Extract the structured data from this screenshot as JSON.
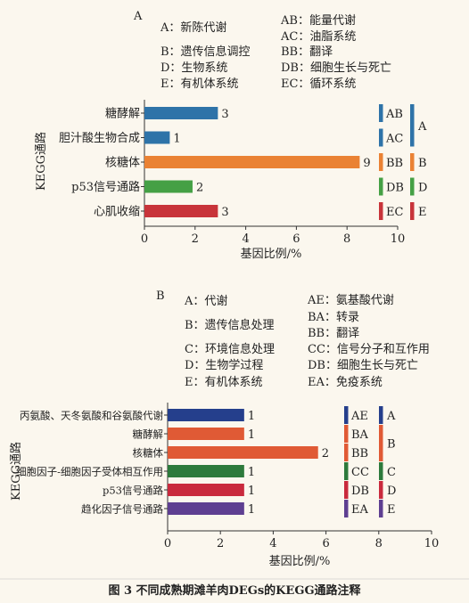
{
  "caption": "图 3 不同成熟期滩羊肉DEGs的KEGG通路注释",
  "chart_data": [
    {
      "type": "bar",
      "orientation": "horizontal",
      "panel": "A",
      "legend": [
        "A：新陈代谢",
        "B：遗传信息调控",
        "D：生物系统",
        "E：有机体系统",
        "AB：能量代谢",
        "AC：油脂系统",
        "BB：翻译",
        "DB：细胞生长与死亡",
        "EC：循环系统"
      ],
      "ylabel": "KEGG通路",
      "xlabel": "基因比例/%",
      "xlim": [
        0,
        10
      ],
      "xticks": [
        "0",
        "2",
        "4",
        "6",
        "8",
        "10"
      ],
      "categories": [
        "糖酵解",
        "胆汁酸生物合成",
        "核糖体",
        "p53信号通路",
        "心肌收缩"
      ],
      "values": [
        2.9,
        1.0,
        8.5,
        1.9,
        2.9
      ],
      "value_labels": [
        "3",
        "1",
        "9",
        "2",
        "3"
      ],
      "bar_colors": [
        "#2e73a8",
        "#2e73a8",
        "#ea8234",
        "#45a045",
        "#c8343a"
      ],
      "codes": [
        {
          "code": "AB",
          "color": "#2e73a8"
        },
        {
          "code": "AC",
          "color": "#2e73a8"
        },
        {
          "code": "BB",
          "color": "#ea8234"
        },
        {
          "code": "DB",
          "color": "#45a045"
        },
        {
          "code": "EC",
          "color": "#c8343a"
        }
      ],
      "groups": [
        {
          "code": "A",
          "color": "#2e73a8"
        },
        {
          "code": "B",
          "color": "#ea8234"
        },
        {
          "code": "D",
          "color": "#45a045"
        },
        {
          "code": "E",
          "color": "#c8343a"
        }
      ]
    },
    {
      "type": "bar",
      "orientation": "horizontal",
      "panel": "B",
      "legend": [
        "A：代谢",
        "B：遗传信息处理",
        "C：环境信息处理",
        "D：生物学过程",
        "E：有机体系统",
        "AE：氨基酸代谢",
        "BA：转录",
        "BB：翻译",
        "CC：信号分子和互作用",
        "DB：细胞生长与死亡",
        "EA：免疫系统"
      ],
      "ylabel": "KEGG通路",
      "xlabel": "基因比例/%",
      "xlim": [
        0,
        10
      ],
      "xticks": [
        "0",
        "2",
        "4",
        "6",
        "8",
        "10"
      ],
      "categories": [
        "丙氨酸、天冬氨酸和谷氨酸代谢",
        "糖酵解",
        "核糖体",
        "细胞因子-细胞因子受体相互作用",
        "p53信号通路",
        "趋化因子信号通路"
      ],
      "values": [
        2.9,
        2.9,
        5.7,
        2.9,
        2.9,
        2.9
      ],
      "value_labels": [
        "1",
        "1",
        "2",
        "1",
        "1",
        "1"
      ],
      "bar_colors": [
        "#253f8c",
        "#e05a35",
        "#e05a35",
        "#2d7a3c",
        "#c92a3d",
        "#5e3f91"
      ],
      "codes": [
        {
          "code": "AE",
          "color": "#253f8c"
        },
        {
          "code": "BA",
          "color": "#e05a35"
        },
        {
          "code": "BB",
          "color": "#e05a35"
        },
        {
          "code": "CC",
          "color": "#2d7a3c"
        },
        {
          "code": "DB",
          "color": "#c92a3d"
        },
        {
          "code": "EA",
          "color": "#5e3f91"
        }
      ],
      "groups": [
        {
          "code": "A",
          "color": "#253f8c"
        },
        {
          "code": "B",
          "color": "#e05a35"
        },
        {
          "code": "C",
          "color": "#2d7a3c"
        },
        {
          "code": "D",
          "color": "#c92a3d"
        },
        {
          "code": "E",
          "color": "#5e3f91"
        }
      ]
    }
  ]
}
